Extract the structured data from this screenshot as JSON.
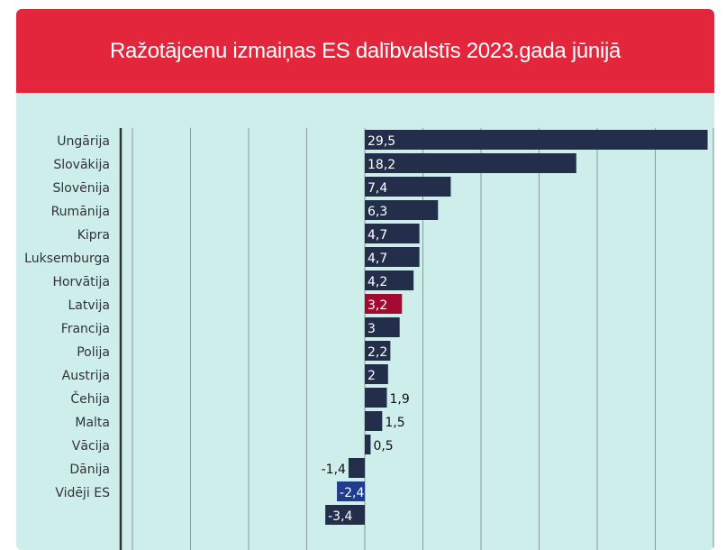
{
  "chart_data": {
    "type": "bar",
    "orientation": "horizontal",
    "title": "Ražotājcenu izmaiņas ES dalībvalstīs 2023.gada jūnijā",
    "categories": [
      "Ungārija",
      "Slovākija",
      "Slovēnija",
      "Rumānija",
      "Kipra",
      "Luksemburga",
      "Horvātija",
      "Latvija",
      "Francija",
      "Polija",
      "Austrija",
      "Čehija",
      "Malta",
      "Vācija",
      "Dānija",
      "Vidēji ES",
      ""
    ],
    "values": [
      29.5,
      18.2,
      7.4,
      6.3,
      4.7,
      4.7,
      4.2,
      3.2,
      3,
      2.2,
      2,
      1.9,
      1.5,
      0.5,
      -1.4,
      -2.4,
      -3.4
    ],
    "value_labels": [
      "29,5",
      "18,2",
      "7,4",
      "6,3",
      "4,7",
      "4,7",
      "4,2",
      "3,2",
      "3",
      "2,2",
      "2",
      "1,9",
      "1,5",
      "0,5",
      "-1,4",
      "-2,4",
      "-3,4"
    ],
    "xlim": [
      -21,
      30
    ],
    "grid": true,
    "colors": {
      "default": "#232f4a",
      "highlight": "#a4092f",
      "average": "#1f3d8c"
    },
    "highlight_index": 7,
    "average_index": 15
  }
}
